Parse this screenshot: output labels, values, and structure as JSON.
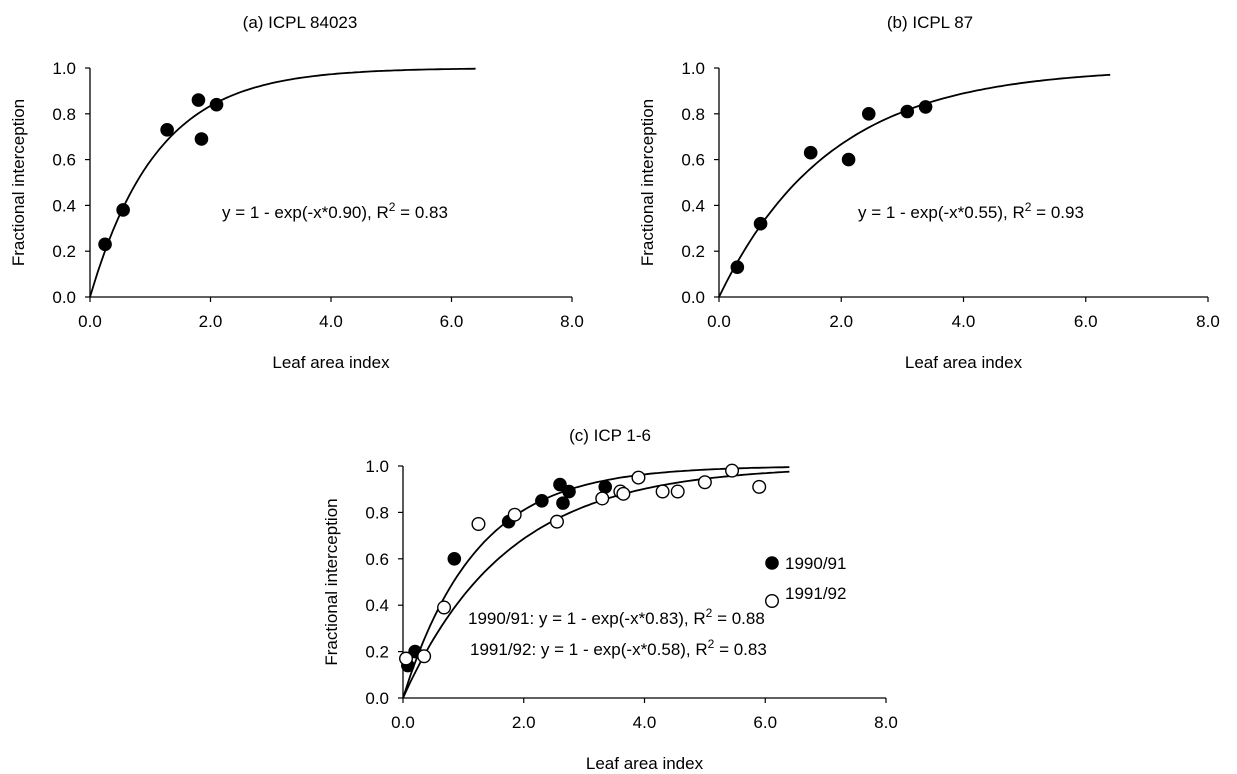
{
  "chart_data": [
    {
      "type": "scatter",
      "title": "(a) ICPL 84023",
      "xlabel": "Leaf area index",
      "ylabel": "Fractional interception",
      "xlim": [
        0,
        8
      ],
      "ylim": [
        0,
        1
      ],
      "x_ticks": [
        "0.0",
        "2.0",
        "4.0",
        "6.0",
        "8.0"
      ],
      "y_ticks": [
        "0.0",
        "0.2",
        "0.4",
        "0.6",
        "0.8",
        "1.0"
      ],
      "series": [
        {
          "marker": "filled",
          "points": [
            [
              0.25,
              0.23
            ],
            [
              0.55,
              0.38
            ],
            [
              1.28,
              0.73
            ],
            [
              1.8,
              0.86
            ],
            [
              1.85,
              0.69
            ],
            [
              2.1,
              0.84
            ]
          ],
          "fit": {
            "k": 0.9,
            "xmax": 6.4
          }
        }
      ],
      "annotations": [
        {
          "eq": "y = 1 - exp(-x*0.90), R",
          "sup": "2",
          "tail": " = 0.83"
        }
      ]
    },
    {
      "type": "scatter",
      "title": "(b) ICPL 87",
      "xlabel": "Leaf area index",
      "ylabel": "Fractional interception",
      "xlim": [
        0,
        8
      ],
      "ylim": [
        0,
        1
      ],
      "x_ticks": [
        "0.0",
        "2.0",
        "4.0",
        "6.0",
        "8.0"
      ],
      "y_ticks": [
        "0.0",
        "0.2",
        "0.4",
        "0.6",
        "0.8",
        "1.0"
      ],
      "series": [
        {
          "marker": "filled",
          "points": [
            [
              0.3,
              0.13
            ],
            [
              0.68,
              0.32
            ],
            [
              1.5,
              0.63
            ],
            [
              2.12,
              0.6
            ],
            [
              2.45,
              0.8
            ],
            [
              3.08,
              0.81
            ],
            [
              3.38,
              0.83
            ]
          ],
          "fit": {
            "k": 0.55,
            "xmax": 6.4
          }
        }
      ],
      "annotations": [
        {
          "eq": "y = 1 - exp(-x*0.55), R",
          "sup": "2",
          "tail": " = 0.93"
        }
      ]
    },
    {
      "type": "scatter",
      "title": "(c) ICP 1-6",
      "xlabel": "Leaf area index",
      "ylabel": "Fractional interception",
      "xlim": [
        0,
        8
      ],
      "ylim": [
        0,
        1
      ],
      "x_ticks": [
        "0.0",
        "2.0",
        "4.0",
        "6.0",
        "8.0"
      ],
      "y_ticks": [
        "0.0",
        "0.2",
        "0.4",
        "0.6",
        "0.8",
        "1.0"
      ],
      "series": [
        {
          "name": "1990/91",
          "marker": "filled",
          "points": [
            [
              0.08,
              0.14
            ],
            [
              0.2,
              0.2
            ],
            [
              0.85,
              0.6
            ],
            [
              1.75,
              0.76
            ],
            [
              2.3,
              0.85
            ],
            [
              2.6,
              0.92
            ],
            [
              2.65,
              0.84
            ],
            [
              2.75,
              0.89
            ],
            [
              3.35,
              0.91
            ]
          ],
          "fit": {
            "k": 0.83,
            "xmax": 6.4
          }
        },
        {
          "name": "1991/92",
          "marker": "open",
          "points": [
            [
              0.05,
              0.17
            ],
            [
              0.35,
              0.18
            ],
            [
              0.68,
              0.39
            ],
            [
              1.25,
              0.75
            ],
            [
              1.85,
              0.79
            ],
            [
              2.55,
              0.76
            ],
            [
              3.3,
              0.86
            ],
            [
              3.6,
              0.89
            ],
            [
              3.65,
              0.88
            ],
            [
              3.9,
              0.95
            ],
            [
              4.3,
              0.89
            ],
            [
              4.55,
              0.89
            ],
            [
              5.0,
              0.93
            ],
            [
              5.45,
              0.98
            ],
            [
              5.9,
              0.91
            ]
          ],
          "fit": {
            "k": 0.58,
            "xmax": 6.4
          }
        }
      ],
      "legend": [
        "1990/91",
        "1991/92"
      ],
      "annotations": [
        {
          "eq": "1990/91: y = 1 - exp(-x*0.83), R",
          "sup": "2",
          "tail": " = 0.88"
        },
        {
          "eq": "1991/92: y = 1 - exp(-x*0.58), R",
          "sup": "2",
          "tail": " = 0.83"
        }
      ]
    }
  ]
}
